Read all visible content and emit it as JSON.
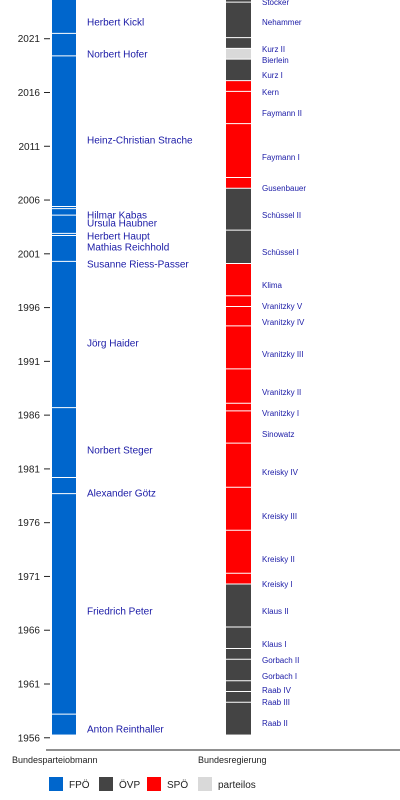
{
  "chart_data": {
    "type": "timeline",
    "y_range": [
      1955.7,
      2024.6
    ],
    "year_ticks": [
      1956,
      1961,
      1966,
      1971,
      1976,
      1981,
      1986,
      1991,
      1996,
      2001,
      2006,
      2011,
      2016,
      2021
    ],
    "columns": {
      "left": "Bundesparteiobmann",
      "right": "Bundesregierung"
    },
    "colors": {
      "FPÖ": "#0066cc",
      "ÖVP": "#444444",
      "SPÖ": "#ff0000",
      "parteilos": "#d9d9d9"
    },
    "legend": [
      {
        "key": "FPÖ",
        "label": "FPÖ"
      },
      {
        "key": "ÖVP",
        "label": "ÖVP"
      },
      {
        "key": "SPÖ",
        "label": "SPÖ"
      },
      {
        "key": "parteilos",
        "label": "parteilos"
      }
    ],
    "leaders": [
      {
        "name": "Anton Reinthaller",
        "start": 1956.3,
        "end": 1958.2
      },
      {
        "name": "Friedrich Peter",
        "start": 1958.2,
        "end": 1978.7
      },
      {
        "name": "Alexander Götz",
        "start": 1978.7,
        "end": 1980.2
      },
      {
        "name": "Norbert Steger",
        "start": 1980.2,
        "end": 1986.7
      },
      {
        "name": "Jörg Haider",
        "start": 1986.7,
        "end": 2000.3
      },
      {
        "name": "Susanne Riess-Passer",
        "start": 2000.3,
        "end": 2002.7
      },
      {
        "name": "Mathias Reichhold",
        "start": 2002.7,
        "end": 2002.9
      },
      {
        "name": "Herbert Haupt",
        "start": 2002.9,
        "end": 2004.6
      },
      {
        "name": "Ursula Haubner",
        "start": 2004.6,
        "end": 2005.2
      },
      {
        "name": "Hilmar Kabas",
        "start": 2005.2,
        "end": 2005.4
      },
      {
        "name": "Heinz-Christian Strache",
        "start": 2005.4,
        "end": 2019.4
      },
      {
        "name": "Norbert Hofer",
        "start": 2019.4,
        "end": 2021.5
      },
      {
        "name": "Herbert Kickl",
        "start": 2021.5,
        "end": 2024.6
      }
    ],
    "governments": [
      {
        "name": "Raab II",
        "party": "ÖVP",
        "start": 1956.3,
        "end": 1959.3
      },
      {
        "name": "Raab III",
        "party": "ÖVP",
        "start": 1959.3,
        "end": 1960.3
      },
      {
        "name": "Raab IV",
        "party": "ÖVP",
        "start": 1960.3,
        "end": 1961.3
      },
      {
        "name": "Gorbach I",
        "party": "ÖVP",
        "start": 1961.3,
        "end": 1963.3
      },
      {
        "name": "Gorbach II",
        "party": "ÖVP",
        "start": 1963.3,
        "end": 1964.3
      },
      {
        "name": "Klaus I",
        "party": "ÖVP",
        "start": 1964.3,
        "end": 1966.3
      },
      {
        "name": "Klaus II",
        "party": "ÖVP",
        "start": 1966.3,
        "end": 1970.3
      },
      {
        "name": "Kreisky I",
        "party": "SPÖ",
        "start": 1970.3,
        "end": 1971.3
      },
      {
        "name": "Kreisky II",
        "party": "SPÖ",
        "start": 1971.3,
        "end": 1975.3
      },
      {
        "name": "Kreisky III",
        "party": "SPÖ",
        "start": 1975.3,
        "end": 1979.3
      },
      {
        "name": "Kreisky IV",
        "party": "SPÖ",
        "start": 1979.3,
        "end": 1983.4
      },
      {
        "name": "Sinowatz",
        "party": "SPÖ",
        "start": 1983.4,
        "end": 1986.4
      },
      {
        "name": "Vranitzky I",
        "party": "SPÖ",
        "start": 1986.4,
        "end": 1987.1
      },
      {
        "name": "Vranitzky II",
        "party": "SPÖ",
        "start": 1987.1,
        "end": 1990.3
      },
      {
        "name": "Vranitzky III",
        "party": "SPÖ",
        "start": 1990.3,
        "end": 1994.3
      },
      {
        "name": "Vranitzky IV",
        "party": "SPÖ",
        "start": 1994.3,
        "end": 1996.1
      },
      {
        "name": "Vranitzky V",
        "party": "SPÖ",
        "start": 1996.1,
        "end": 1997.1
      },
      {
        "name": "Klima",
        "party": "SPÖ",
        "start": 1997.1,
        "end": 2000.1
      },
      {
        "name": "Schüssel I",
        "party": "ÖVP",
        "start": 2000.1,
        "end": 2003.2
      },
      {
        "name": "Schüssel II",
        "party": "ÖVP",
        "start": 2003.2,
        "end": 2007.1
      },
      {
        "name": "Gusenbauer",
        "party": "SPÖ",
        "start": 2007.1,
        "end": 2008.1
      },
      {
        "name": "Faymann I",
        "party": "SPÖ",
        "start": 2008.1,
        "end": 2013.1
      },
      {
        "name": "Faymann II",
        "party": "SPÖ",
        "start": 2013.1,
        "end": 2016.1
      },
      {
        "name": "Kern",
        "party": "SPÖ",
        "start": 2016.1,
        "end": 2017.1
      },
      {
        "name": "Kurz I",
        "party": "ÖVP",
        "start": 2017.1,
        "end": 2019.1
      },
      {
        "name": "Bierlein",
        "party": "parteilos",
        "start": 2019.1,
        "end": 2020.1
      },
      {
        "name": "Kurz II",
        "party": "ÖVP",
        "start": 2020.1,
        "end": 2021.1
      },
      {
        "name": "Nehammer",
        "party": "ÖVP",
        "start": 2021.1,
        "end": 2024.4
      },
      {
        "name": "Stocker",
        "party": "ÖVP",
        "start": 2024.4,
        "end": 2024.6
      }
    ]
  }
}
